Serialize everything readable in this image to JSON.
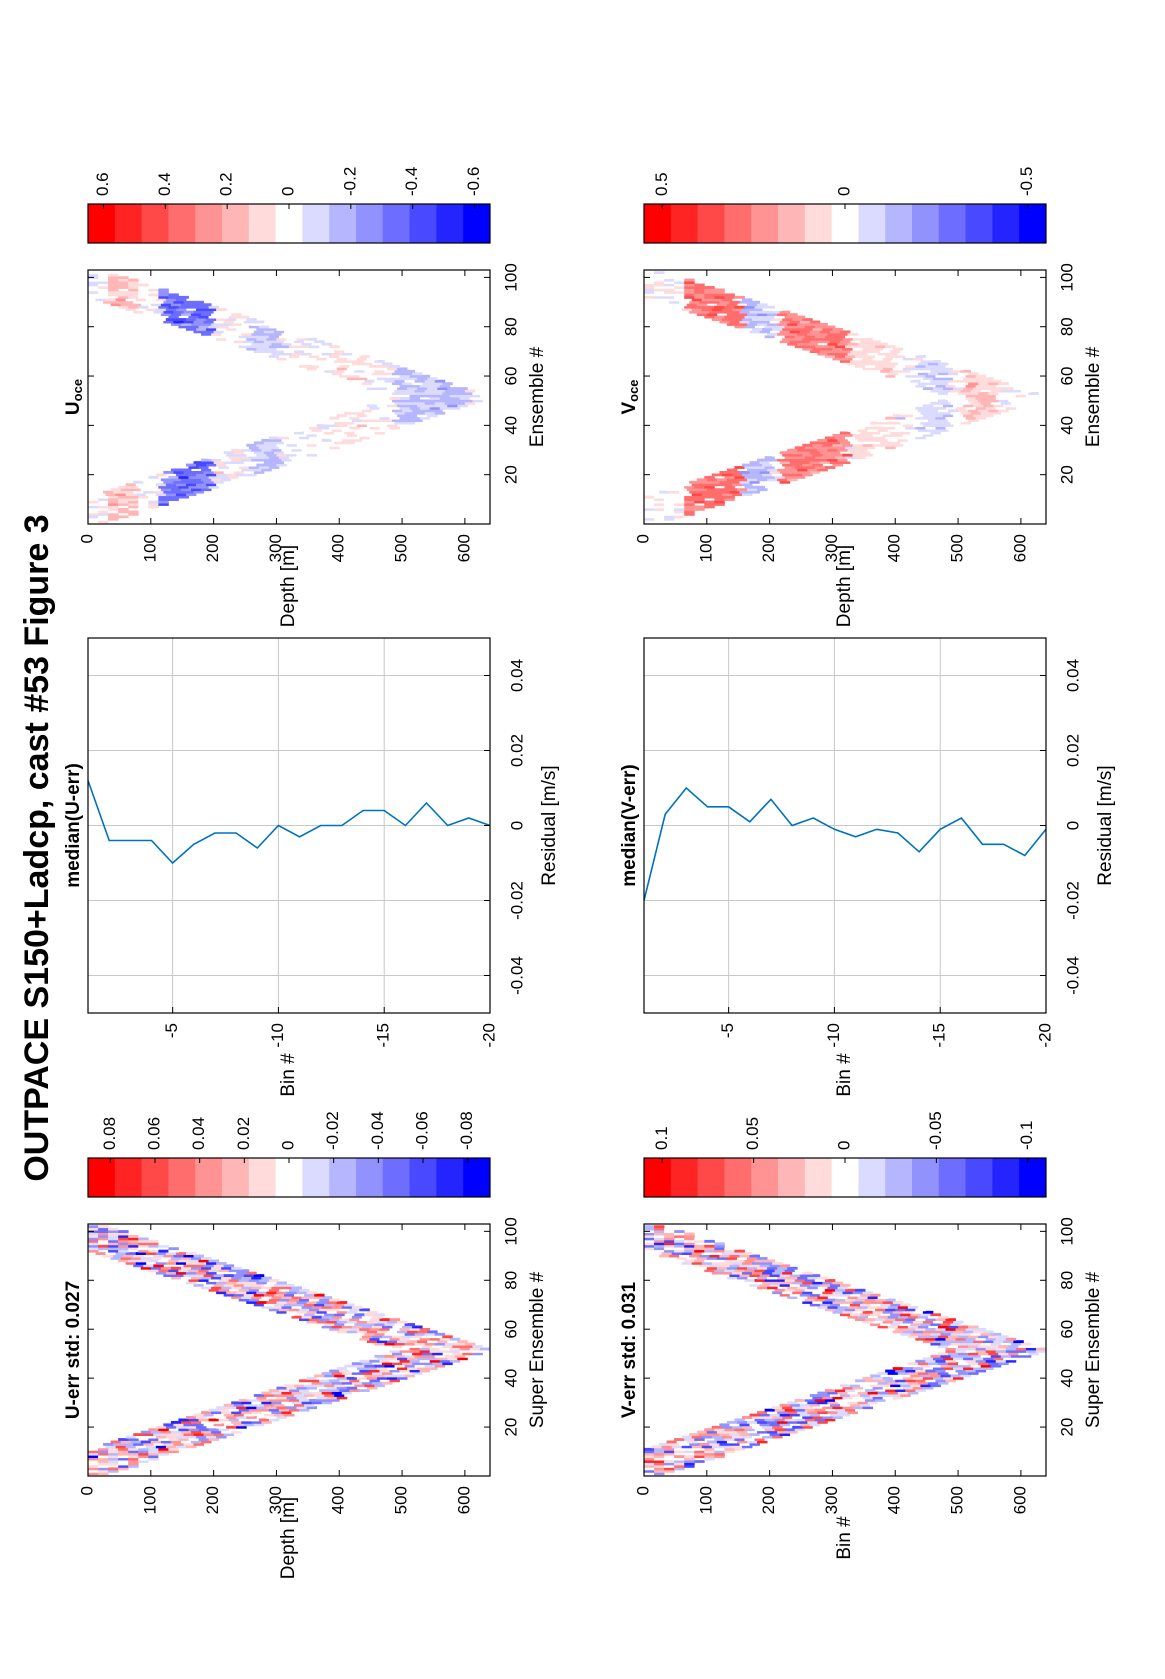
{
  "figure": {
    "title": "OUTPACE S150+Ladcp, cast #53  Figure 3",
    "orientation": "rotated-90-ccw"
  },
  "colors": {
    "red_end": "#ff0000",
    "blue_end": "#0000ff",
    "line": "#0072bd",
    "grid": "#c8c8c8",
    "frame": "#000000"
  },
  "chart_data": [
    {
      "id": "u-err",
      "type": "heatmap",
      "title": "U-err std: 0.027",
      "xlabel": "Super Ensemble #",
      "ylabel": "Depth [m]",
      "xlim": [
        0,
        103
      ],
      "ylim": [
        0,
        640
      ],
      "xticks": [
        "20",
        "40",
        "60",
        "80",
        "100"
      ],
      "yticks": [
        "0",
        "100",
        "200",
        "300",
        "400",
        "500",
        "600"
      ],
      "pattern": "V-shaped downcast/upcast, turning point near ensemble 50 at ~620 m",
      "colorbar": {
        "range": [
          -0.09,
          0.09
        ],
        "ticks": [
          "0.08",
          "0.06",
          "0.04",
          "0.02",
          "0",
          "-0.02",
          "-0.04",
          "-0.06",
          "-0.08"
        ]
      }
    },
    {
      "id": "v-err",
      "type": "heatmap",
      "title": "V-err std: 0.031",
      "xlabel": "Super Ensemble #",
      "ylabel": "Bin #",
      "xlim": [
        0,
        103
      ],
      "ylim": [
        0,
        640
      ],
      "xticks": [
        "20",
        "40",
        "60",
        "80",
        "100"
      ],
      "yticks": [
        "0",
        "100",
        "200",
        "300",
        "400",
        "500",
        "600"
      ],
      "pattern": "V-shaped downcast/upcast, turning point near ensemble 50 at ~620 m",
      "colorbar": {
        "range": [
          -0.11,
          0.11
        ],
        "ticks": [
          "0.1",
          "0.05",
          "0",
          "-0.05",
          "-0.1"
        ]
      }
    },
    {
      "id": "median-u-err",
      "type": "line",
      "title": "median(U-err)",
      "xlabel": "Residual [m/s]",
      "ylabel": "Bin #",
      "xlim": [
        -0.05,
        0.05
      ],
      "ylim": [
        -20,
        -1
      ],
      "xticks": [
        "-0.04",
        "-0.02",
        "0",
        "0.02",
        "0.04"
      ],
      "yticks": [
        "-5",
        "-10",
        "-15",
        "-20"
      ],
      "grid": true,
      "series": [
        {
          "bin": [
            -1,
            -2,
            -3,
            -4,
            -5,
            -6,
            -7,
            -8,
            -9,
            -10,
            -11,
            -12,
            -13,
            -14,
            -15,
            -16,
            -17,
            -18,
            -19,
            -20
          ],
          "residual": [
            0.012,
            -0.004,
            -0.004,
            -0.004,
            -0.01,
            -0.005,
            -0.002,
            -0.002,
            -0.006,
            0.0,
            -0.003,
            0.0,
            0.0,
            0.004,
            0.004,
            0.0,
            0.006,
            0.0,
            0.002,
            0.0
          ]
        }
      ]
    },
    {
      "id": "median-v-err",
      "type": "line",
      "title": "median(V-err)",
      "xlabel": "Residual [m/s]",
      "ylabel": "Bin #",
      "xlim": [
        -0.05,
        0.05
      ],
      "ylim": [
        -20,
        -1
      ],
      "xticks": [
        "-0.04",
        "-0.02",
        "0",
        "0.02",
        "0.04"
      ],
      "yticks": [
        "-5",
        "-10",
        "-15",
        "-20"
      ],
      "grid": true,
      "series": [
        {
          "bin": [
            -1,
            -2,
            -3,
            -4,
            -5,
            -6,
            -7,
            -8,
            -9,
            -10,
            -11,
            -12,
            -13,
            -14,
            -15,
            -16,
            -17,
            -18,
            -19,
            -20
          ],
          "residual": [
            -0.02,
            0.003,
            0.01,
            0.005,
            0.005,
            0.001,
            0.007,
            0.0,
            0.002,
            -0.001,
            -0.003,
            -0.001,
            -0.002,
            -0.007,
            -0.001,
            0.002,
            -0.005,
            -0.005,
            -0.008,
            -0.001
          ]
        }
      ]
    },
    {
      "id": "u-oce",
      "type": "heatmap",
      "title": "U",
      "title_sub": "oce",
      "xlabel": "Ensemble #",
      "ylabel": "Depth [m]",
      "xlim": [
        0,
        103
      ],
      "ylim": [
        0,
        640
      ],
      "xticks": [
        "20",
        "40",
        "60",
        "80",
        "100"
      ],
      "yticks": [
        "0",
        "100",
        "200",
        "300",
        "400",
        "500",
        "600"
      ],
      "pattern": "V-shaped, strong negative (blue) band near 150 m, weak signals elsewhere",
      "colorbar": {
        "range": [
          -0.65,
          0.65
        ],
        "ticks": [
          "0.6",
          "0.4",
          "0.2",
          "0",
          "-0.2",
          "-0.4",
          "-0.6"
        ]
      }
    },
    {
      "id": "v-oce",
      "type": "heatmap",
      "title": "V",
      "title_sub": "oce",
      "xlabel": "Ensemble #",
      "ylabel": "Depth [m]",
      "xlim": [
        0,
        103
      ],
      "ylim": [
        0,
        640
      ],
      "xticks": [
        "20",
        "40",
        "60",
        "80",
        "100"
      ],
      "yticks": [
        "0",
        "100",
        "200",
        "300",
        "400",
        "500",
        "600"
      ],
      "pattern": "V-shaped, positive (red) bands 80-150 m and 230-320 m, blue near 180 m",
      "colorbar": {
        "range": [
          -0.55,
          0.55
        ],
        "ticks": [
          "0.5",
          "0",
          "-0.5"
        ]
      }
    }
  ]
}
